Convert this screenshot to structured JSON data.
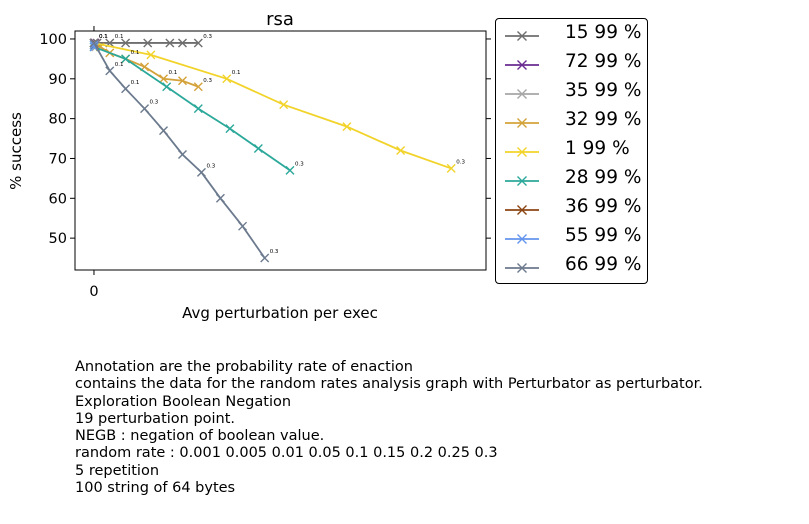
{
  "chart_data": {
    "type": "line",
    "title": "rsa",
    "xlabel": "Avg perturbation per exec",
    "ylabel": "% success",
    "x_ticks": [
      "0"
    ],
    "y_ticks": [
      50,
      60,
      70,
      80,
      90,
      100
    ],
    "xlim": [
      -0.06,
      1.24
    ],
    "ylim": [
      42,
      102
    ],
    "grid": false,
    "legend_position": "outside-right",
    "series": [
      {
        "name": "15 99 %",
        "color": "#6e6e6e",
        "x": [
          0.0,
          0.002,
          0.01,
          0.05,
          0.1,
          0.17,
          0.24,
          0.28,
          0.33
        ],
        "y": [
          99.0,
          99.0,
          99.0,
          99.0,
          99.0,
          99.0,
          99.0,
          99.0,
          99.0
        ],
        "annotations": [
          {
            "i": 3,
            "text": "0.1"
          },
          {
            "i": 8,
            "text": "0.3"
          }
        ]
      },
      {
        "name": "72 99 %",
        "color": "#6a2c91",
        "x": [
          0.0,
          0.001,
          0.002,
          0.003
        ],
        "y": [
          99.0,
          99.0,
          99.0,
          99.0
        ],
        "annotations": [
          {
            "i": 0,
            "text": "0.1"
          }
        ]
      },
      {
        "name": "35 99 %",
        "color": "#a6a6a6",
        "x": [
          0.0,
          0.003,
          0.006
        ],
        "y": [
          99.0,
          98.5,
          98.0
        ],
        "annotations": [
          {
            "i": 0,
            "text": "0.1"
          }
        ]
      },
      {
        "name": "32 99 %",
        "color": "#d4a23a",
        "x": [
          0.0,
          0.02,
          0.05,
          0.1,
          0.16,
          0.22,
          0.28,
          0.33
        ],
        "y": [
          99.0,
          98.0,
          96.5,
          95.0,
          93.0,
          90.0,
          89.5,
          88.0
        ],
        "annotations": [
          {
            "i": 3,
            "text": "0.1"
          },
          {
            "i": 5,
            "text": "0.1"
          },
          {
            "i": 7,
            "text": "0.3"
          }
        ]
      },
      {
        "name": "1 99 %",
        "color": "#f2d32a",
        "x": [
          0.0,
          0.18,
          0.42,
          0.6,
          0.8,
          0.97,
          1.13
        ],
        "y": [
          99.0,
          96.0,
          90.0,
          83.5,
          78.0,
          72.0,
          67.5
        ],
        "annotations": [
          {
            "i": 2,
            "text": "0.1"
          },
          {
            "i": 6,
            "text": "0.3"
          }
        ]
      },
      {
        "name": "28 99 %",
        "color": "#2ba89a",
        "x": [
          0.0,
          0.1,
          0.23,
          0.33,
          0.43,
          0.52,
          0.62
        ],
        "y": [
          98.0,
          95.0,
          88.0,
          82.5,
          77.5,
          72.5,
          67.0
        ],
        "annotations": [
          {
            "i": 6,
            "text": "0.3"
          }
        ]
      },
      {
        "name": "36 99 %",
        "color": "#8b4513",
        "x": [
          0.0,
          0.001
        ],
        "y": [
          99.0,
          98.5
        ],
        "annotations": [
          {
            "i": 0,
            "text": "0.1"
          }
        ]
      },
      {
        "name": "55 99 %",
        "color": "#6495ed",
        "x": [
          0.0,
          0.001
        ],
        "y": [
          98.5,
          98.0
        ],
        "annotations": []
      },
      {
        "name": "66 99 %",
        "color": "#6c7a8e",
        "x": [
          0.0,
          0.05,
          0.1,
          0.16,
          0.22,
          0.28,
          0.34,
          0.4,
          0.47,
          0.54
        ],
        "y": [
          99.0,
          92.0,
          87.5,
          82.5,
          77.0,
          71.0,
          66.5,
          60.0,
          53.0,
          45.0
        ],
        "annotations": [
          {
            "i": 1,
            "text": "0.1"
          },
          {
            "i": 2,
            "text": "0.1"
          },
          {
            "i": 3,
            "text": "0.3"
          },
          {
            "i": 6,
            "text": "0.3"
          },
          {
            "i": 9,
            "text": "0.3"
          }
        ]
      }
    ]
  },
  "caption": [
    "Annotation are the probability rate of enaction",
    "contains the data for the random rates analysis graph with Perturbator as perturbator.",
    "Exploration Boolean Negation",
    "19 perturbation point.",
    "NEGB : negation of boolean value.",
    "random rate : 0.001 0.005 0.01 0.05 0.1 0.15 0.2 0.25 0.3",
    "5 repetition",
    "100 string of 64 bytes"
  ]
}
